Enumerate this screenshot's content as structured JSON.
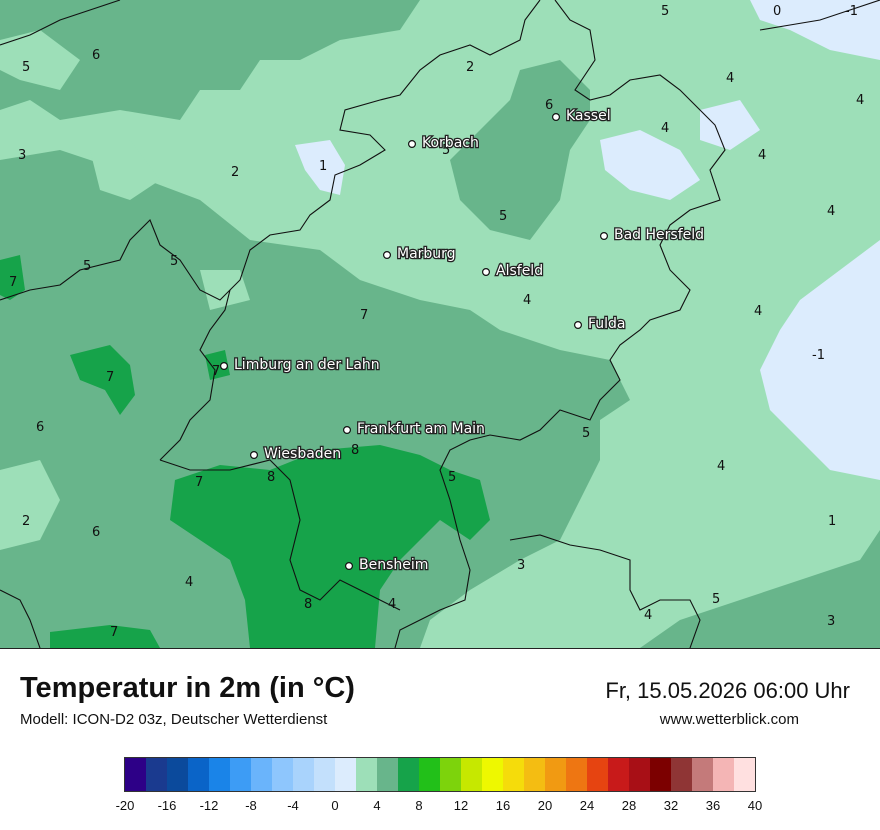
{
  "title": "Temperatur in 2m (in °C)",
  "subtitle": "Modell: ICON-D2 03z, Deutscher Wetterdienst",
  "datetime": "Fr, 15.05.2026 06:00 Uhr",
  "website": "www.wetterblick.com",
  "cities": [
    {
      "name": "Kassel"
    },
    {
      "name": "Korbach"
    },
    {
      "name": "Bad Hersfeld"
    },
    {
      "name": "Marburg"
    },
    {
      "name": "Alsfeld"
    },
    {
      "name": "Fulda"
    },
    {
      "name": "Limburg an der Lahn"
    },
    {
      "name": "Frankfurt am Main"
    },
    {
      "name": "Wiesbaden"
    },
    {
      "name": "Bensheim"
    }
  ],
  "isotherm_labels": [
    "5",
    "0",
    "-1",
    "6",
    "5",
    "2",
    "4",
    "4",
    "6",
    "5",
    "4",
    "3",
    "1",
    "2",
    "4",
    "5",
    "4",
    "5",
    "5",
    "4",
    "4",
    "-1",
    "7",
    "7",
    "7",
    "6",
    "5",
    "4",
    "8",
    "8",
    "7",
    "5",
    "2",
    "6",
    "7",
    "4",
    "3",
    "1",
    "4",
    "8",
    "4",
    "4",
    "5",
    "3",
    "7"
  ],
  "legend": {
    "colors": [
      "#2d0087",
      "#1a3a8f",
      "#0b4a9c",
      "#0a64c8",
      "#1a84e8",
      "#3d9cf5",
      "#6ab4fb",
      "#8ec6fd",
      "#a9d3fc",
      "#c3e0fc",
      "#dcecfd",
      "#9ddfb8",
      "#68b58b",
      "#16a34a",
      "#22c019",
      "#7dd30c",
      "#c6e800",
      "#eef800",
      "#f5dc0b",
      "#f4bd12",
      "#f19a12",
      "#ee7612",
      "#e64411",
      "#c81a1a",
      "#a80f16",
      "#7c0000",
      "#8f3535",
      "#c47a7a",
      "#f4b5b5",
      "#ffe0e0"
    ],
    "ticks": [
      "-20",
      "-16",
      "-12",
      "-8",
      "-4",
      "0",
      "4",
      "8",
      "12",
      "16",
      "20",
      "24",
      "28",
      "32",
      "36",
      "40"
    ]
  }
}
